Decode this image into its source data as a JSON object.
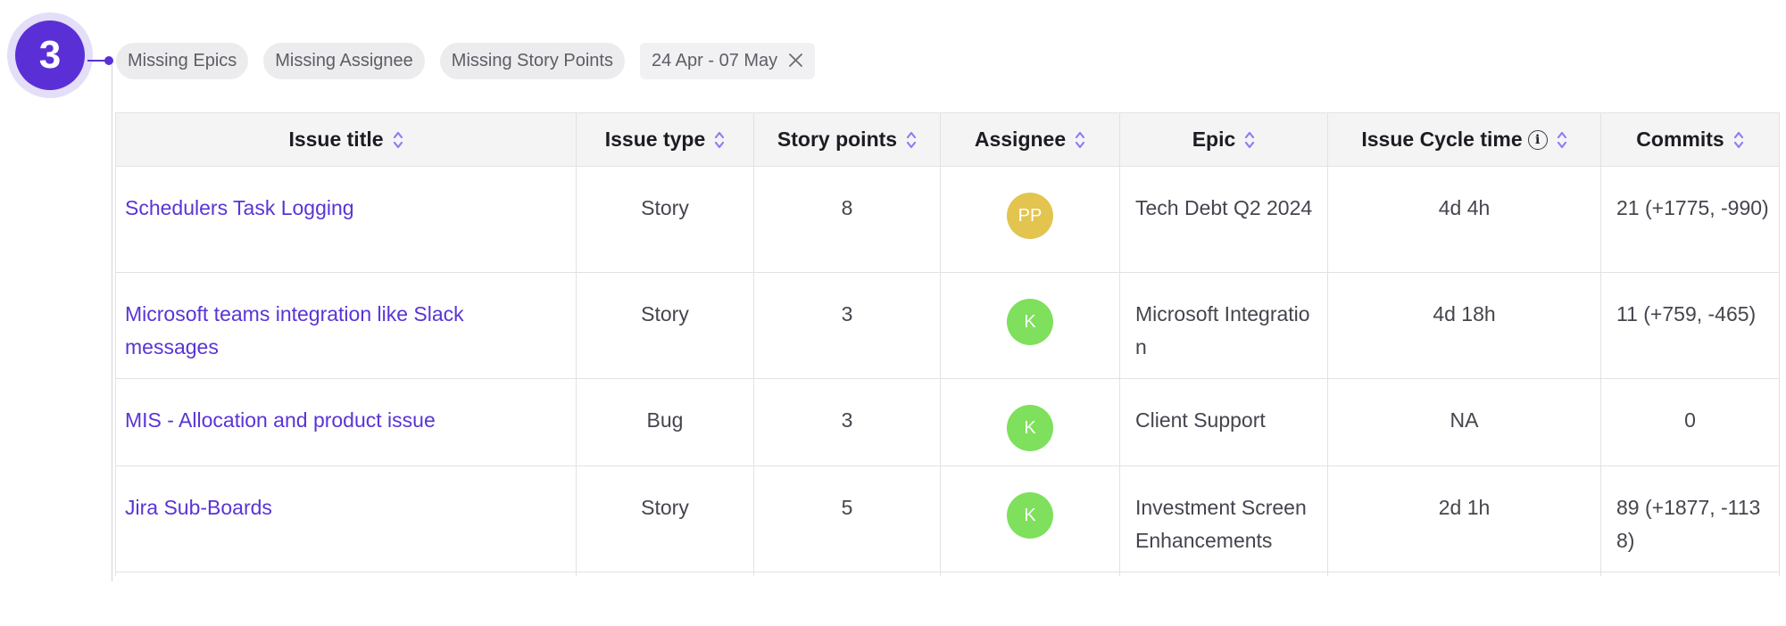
{
  "step": {
    "number": "3"
  },
  "filters": {
    "chips": [
      "Missing Epics",
      "Missing Assignee",
      "Missing Story Points"
    ],
    "date_range": "24 Apr - 07 May",
    "clear_icon": "close-icon"
  },
  "table": {
    "headers": {
      "issue_title": "Issue title",
      "issue_type": "Issue type",
      "story_points": "Story points",
      "assignee": "Assignee",
      "epic": "Epic",
      "cycle_time": "Issue Cycle time",
      "commits": "Commits"
    },
    "header_icons": {
      "sort": "sort-icon",
      "info": "info-icon"
    },
    "rows": [
      {
        "title": "Schedulers Task Logging",
        "type": "Story",
        "points": "8",
        "assignee": {
          "initials": "PP",
          "color": "#e2c44f"
        },
        "epic": "Tech Debt Q2 2024",
        "cycle_time": "4d 4h",
        "commits": "21 (+1775, -990)"
      },
      {
        "title": "Microsoft teams integration like Slack messages",
        "type": "Story",
        "points": "3",
        "assignee": {
          "initials": "K",
          "color": "#7ee05c"
        },
        "epic": "Microsoft Integration",
        "cycle_time": "4d 18h",
        "commits": "11 (+759, -465)"
      },
      {
        "title": "MIS - Allocation and product issue",
        "type": "Bug",
        "points": "3",
        "assignee": {
          "initials": "K",
          "color": "#7ee05c"
        },
        "epic": "Client Support",
        "cycle_time": "NA",
        "commits": "0"
      },
      {
        "title": "Jira Sub-Boards",
        "type": "Story",
        "points": "5",
        "assignee": {
          "initials": "K",
          "color": "#7ee05c"
        },
        "epic": "Investment Screen Enhancements",
        "cycle_time": "2d 1h",
        "commits": "89 (+1877, -1138)"
      }
    ]
  },
  "colors": {
    "accent": "#5a30d6",
    "link": "#5a34d6",
    "sort_icon": "#8b7ff0"
  }
}
